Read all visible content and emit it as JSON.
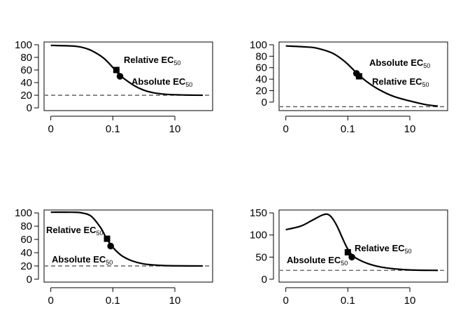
{
  "chart_data": [
    {
      "type": "line",
      "panel": "top-left",
      "x_scale": "log10",
      "x_tick_labels": [
        "0",
        "0.1",
        "10"
      ],
      "x_ticks": [
        0.001,
        0.1,
        10
      ],
      "xlim": [
        0.001,
        100
      ],
      "ylim": [
        0,
        100
      ],
      "y_ticks": [
        0,
        20,
        40,
        60,
        80,
        100
      ],
      "reference_line": 20,
      "curve": [
        [
          0.001,
          99
        ],
        [
          0.005,
          98
        ],
        [
          0.01,
          96
        ],
        [
          0.02,
          91
        ],
        [
          0.05,
          79
        ],
        [
          0.1,
          64
        ],
        [
          0.15,
          54
        ],
        [
          0.25,
          45
        ],
        [
          0.5,
          35
        ],
        [
          1,
          28
        ],
        [
          2,
          24
        ],
        [
          5,
          21.5
        ],
        [
          10,
          20.8
        ],
        [
          30,
          20.2
        ],
        [
          80,
          20
        ]
      ],
      "points": [
        {
          "label": "Relative EC",
          "sub": "50",
          "marker": "square",
          "x": 0.13,
          "y": 60
        },
        {
          "label": "Absolute EC",
          "sub": "50",
          "marker": "circle",
          "x": 0.17,
          "y": 50
        }
      ]
    },
    {
      "type": "line",
      "panel": "top-right",
      "x_scale": "log10",
      "x_tick_labels": [
        "0",
        "0.1",
        "10"
      ],
      "x_ticks": [
        0.001,
        0.1,
        10
      ],
      "xlim": [
        0.001,
        100
      ],
      "ylim": [
        -10,
        100
      ],
      "y_ticks": [
        0,
        20,
        40,
        60,
        80,
        100
      ],
      "reference_line": -8,
      "curve": [
        [
          0.001,
          98
        ],
        [
          0.005,
          96
        ],
        [
          0.01,
          94
        ],
        [
          0.03,
          86
        ],
        [
          0.06,
          76
        ],
        [
          0.1,
          66
        ],
        [
          0.2,
          50
        ],
        [
          0.4,
          36
        ],
        [
          1,
          22
        ],
        [
          3,
          10
        ],
        [
          10,
          2
        ],
        [
          30,
          -4
        ],
        [
          80,
          -7
        ]
      ],
      "points": [
        {
          "label": "Absolute EC",
          "sub": "50",
          "marker": "circle",
          "x": 0.19,
          "y": 50
        },
        {
          "label": "Relative EC",
          "sub": "50",
          "marker": "square",
          "x": 0.23,
          "y": 45
        }
      ]
    },
    {
      "type": "line",
      "panel": "bottom-left",
      "x_scale": "log10",
      "x_tick_labels": [
        "0",
        "0.1",
        "10"
      ],
      "x_ticks": [
        0.001,
        0.1,
        10
      ],
      "xlim": [
        0.001,
        100
      ],
      "ylim": [
        0,
        100
      ],
      "y_ticks": [
        0,
        20,
        40,
        60,
        80,
        100
      ],
      "reference_line": 20,
      "curve": [
        [
          0.001,
          101
        ],
        [
          0.005,
          101
        ],
        [
          0.01,
          100
        ],
        [
          0.02,
          95
        ],
        [
          0.04,
          78
        ],
        [
          0.06,
          63
        ],
        [
          0.08,
          54
        ],
        [
          0.12,
          44
        ],
        [
          0.2,
          35
        ],
        [
          0.4,
          28
        ],
        [
          1,
          23
        ],
        [
          3,
          21
        ],
        [
          10,
          20.2
        ],
        [
          80,
          20
        ]
      ],
      "points": [
        {
          "label": "Relative EC",
          "sub": "50",
          "marker": "square",
          "x": 0.065,
          "y": 61
        },
        {
          "label": "Absolute EC",
          "sub": "50",
          "marker": "circle",
          "x": 0.085,
          "y": 50
        }
      ]
    },
    {
      "type": "line",
      "panel": "bottom-right",
      "x_scale": "log10",
      "x_tick_labels": [
        "0",
        "0.1",
        "10"
      ],
      "x_ticks": [
        0.001,
        0.1,
        10
      ],
      "xlim": [
        0.001,
        100
      ],
      "ylim": [
        0,
        150
      ],
      "y_ticks": [
        0,
        50,
        100,
        150
      ],
      "reference_line": 20,
      "curve": [
        [
          0.001,
          112
        ],
        [
          0.003,
          120
        ],
        [
          0.007,
          133
        ],
        [
          0.015,
          145
        ],
        [
          0.022,
          147
        ],
        [
          0.03,
          140
        ],
        [
          0.045,
          120
        ],
        [
          0.07,
          90
        ],
        [
          0.1,
          68
        ],
        [
          0.15,
          52
        ],
        [
          0.3,
          40
        ],
        [
          0.7,
          31
        ],
        [
          2,
          25
        ],
        [
          10,
          21
        ],
        [
          80,
          20
        ]
      ],
      "points": [
        {
          "label": "Relative EC",
          "sub": "50",
          "marker": "square",
          "x": 0.1,
          "y": 61
        },
        {
          "label": "Absolute EC",
          "sub": "50",
          "marker": "circle",
          "x": 0.135,
          "y": 50
        }
      ]
    }
  ]
}
